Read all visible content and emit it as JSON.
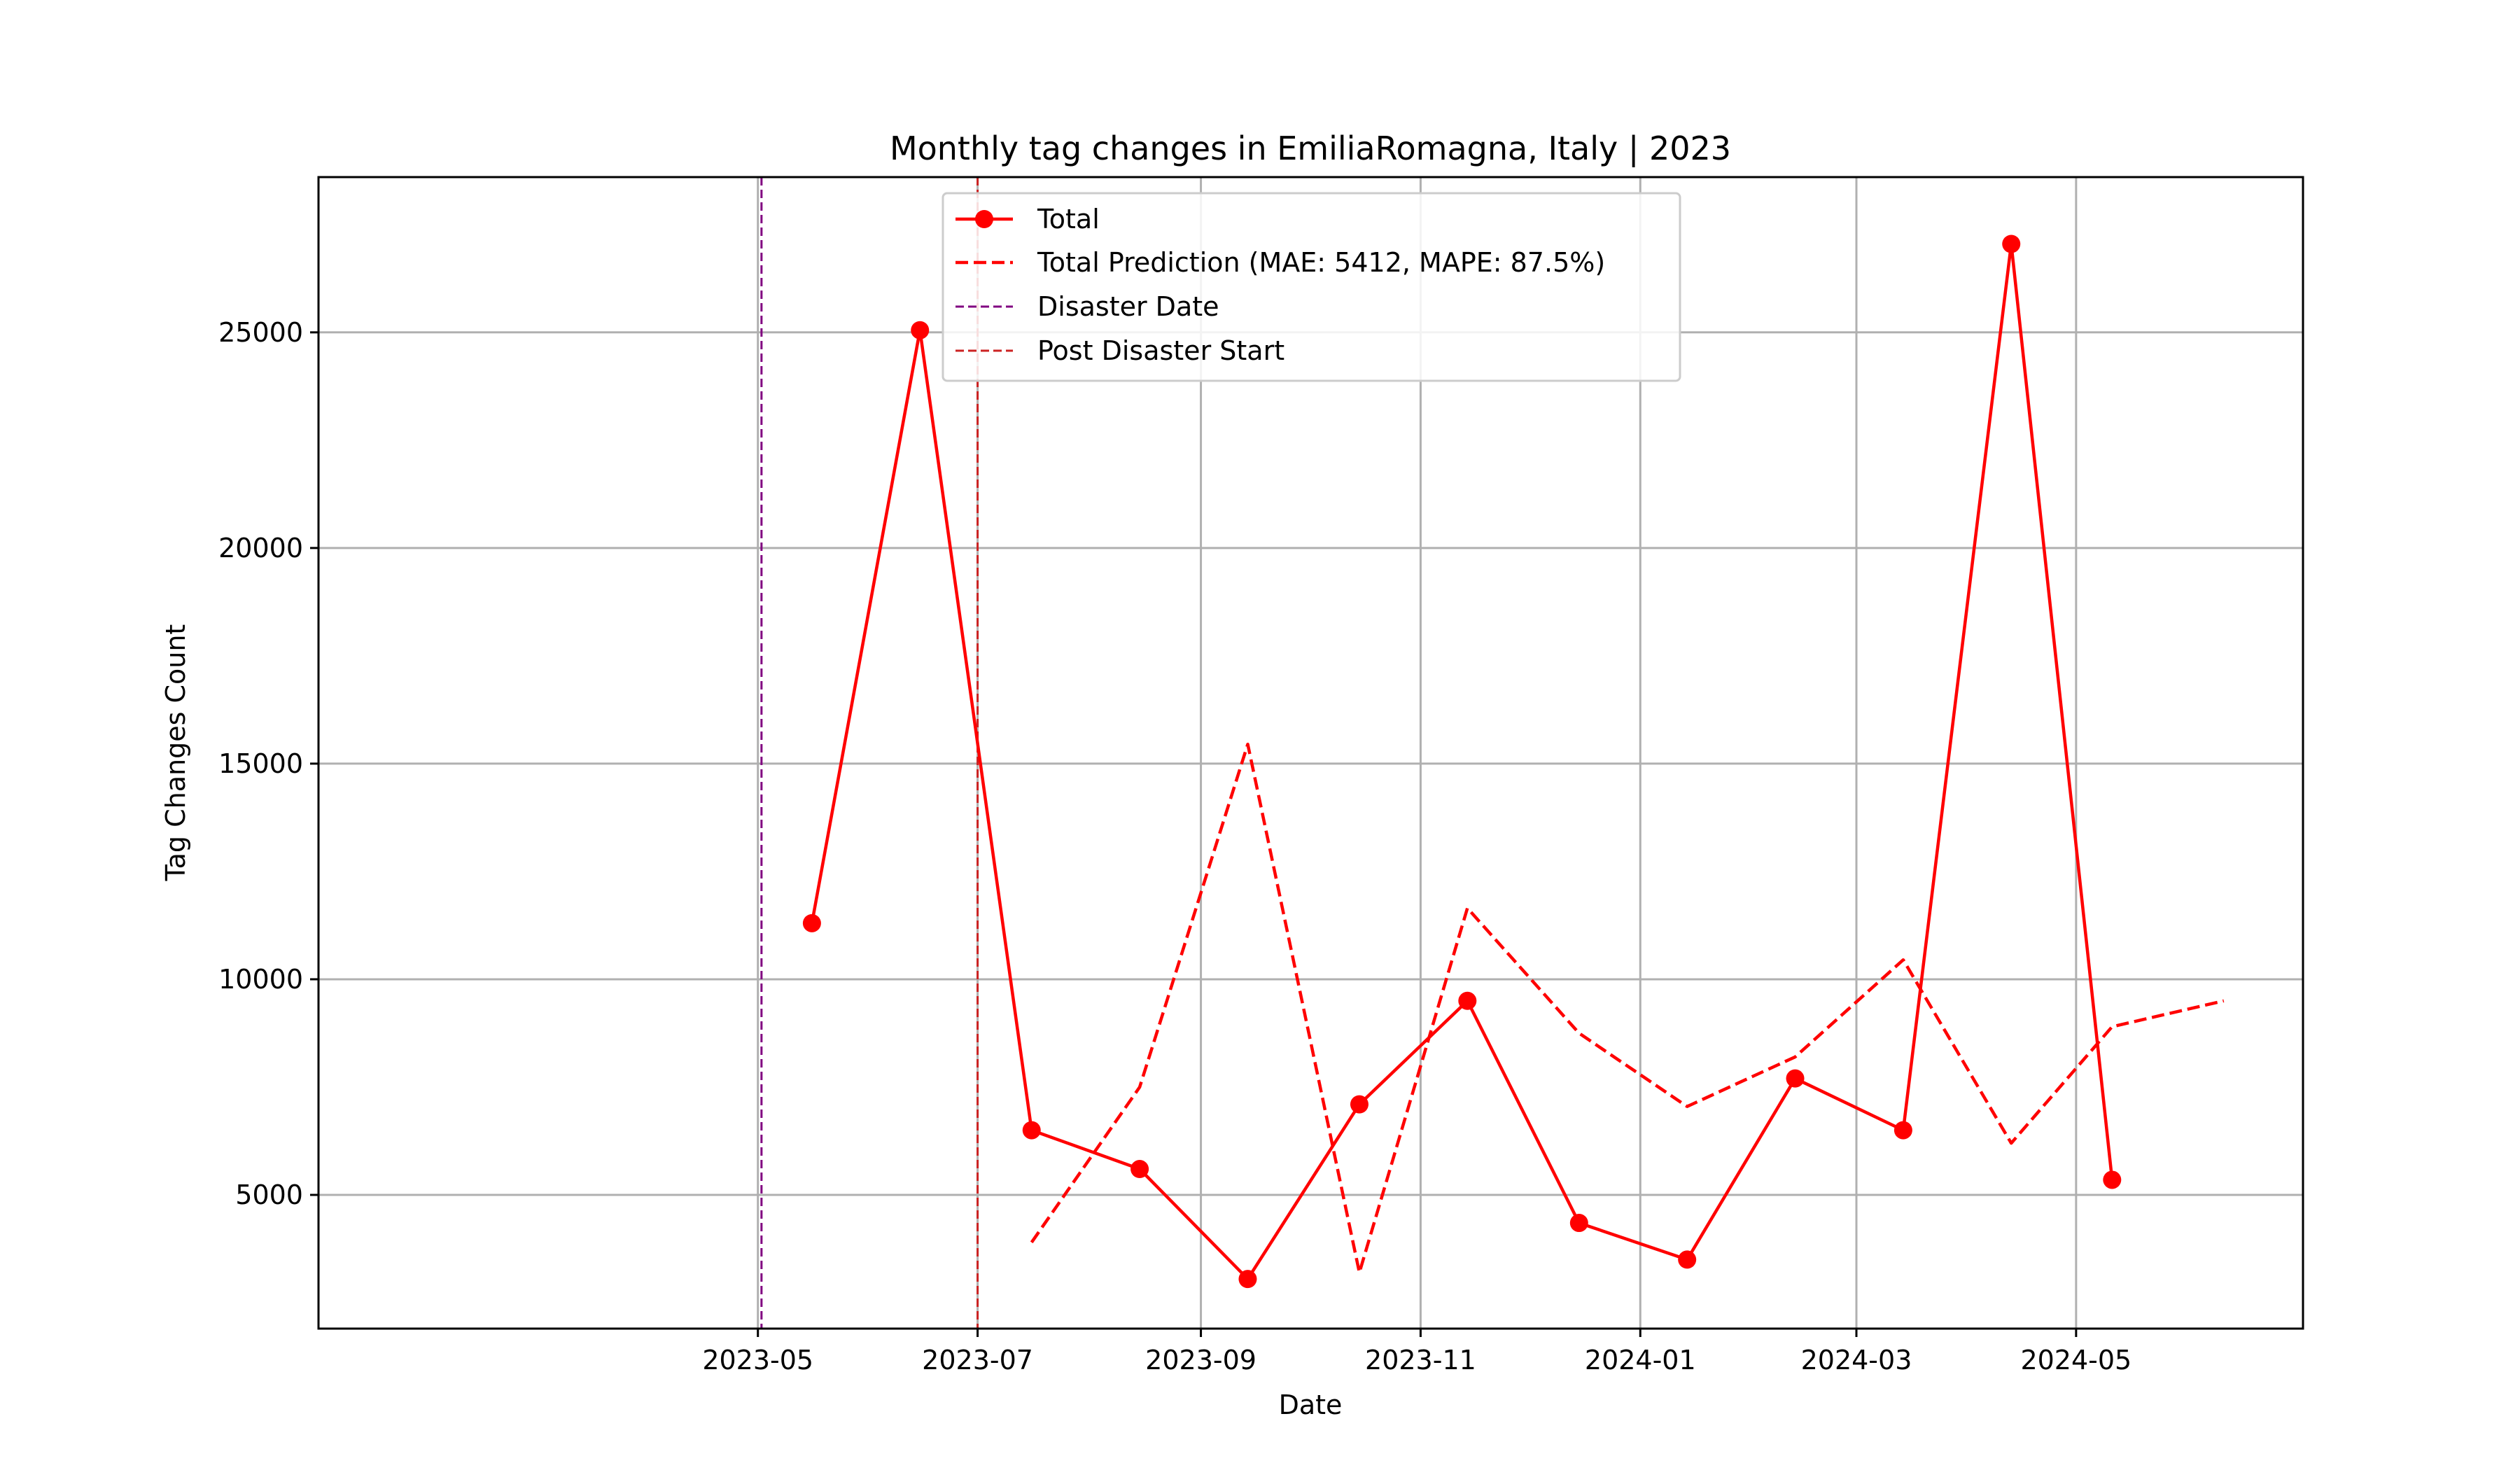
{
  "chart_data": {
    "type": "line",
    "title": "Monthly tag changes in EmiliaRomagna, Italy | 2023",
    "xlabel": "Date",
    "ylabel": "Tag Changes Count",
    "x_ticks": [
      "2023-05",
      "2023-07",
      "2023-09",
      "2023-11",
      "2024-01",
      "2024-03",
      "2024-05"
    ],
    "y_ticks": [
      5000,
      10000,
      15000,
      20000,
      25000
    ],
    "xlim": [
      "2022-12-30",
      "2024-07-03"
    ],
    "ylim": [
      1900,
      28600
    ],
    "grid": true,
    "legend_position": "top-center",
    "series": [
      {
        "name": "Total",
        "style": "solid-marker",
        "color": "#ff0000",
        "points": [
          [
            "2023-05-16",
            11300
          ],
          [
            "2023-06-15",
            25050
          ],
          [
            "2023-07-16",
            6500
          ],
          [
            "2023-08-15",
            5600
          ],
          [
            "2023-09-14",
            3050
          ],
          [
            "2023-10-15",
            7100
          ],
          [
            "2023-11-14",
            9500
          ],
          [
            "2023-12-15",
            4350
          ],
          [
            "2024-01-14",
            3500
          ],
          [
            "2024-02-13",
            7700
          ],
          [
            "2024-03-14",
            6500
          ],
          [
            "2024-04-13",
            27050
          ],
          [
            "2024-05-11",
            5350
          ]
        ]
      },
      {
        "name": "Total Prediction (MAE: 5412, MAPE: 87.5%)",
        "style": "dashed",
        "color": "#ff0000",
        "points": [
          [
            "2023-07-16",
            3900
          ],
          [
            "2023-08-15",
            7500
          ],
          [
            "2023-09-14",
            15450
          ],
          [
            "2023-10-15",
            3200
          ],
          [
            "2023-11-14",
            11650
          ],
          [
            "2023-12-15",
            8750
          ],
          [
            "2024-01-14",
            7050
          ],
          [
            "2024-02-13",
            8200
          ],
          [
            "2024-03-14",
            10450
          ],
          [
            "2024-04-13",
            6200
          ],
          [
            "2024-05-11",
            8900
          ],
          [
            "2024-06-11",
            9500
          ]
        ]
      }
    ],
    "vlines": [
      {
        "name": "Disaster Date",
        "date": "2023-05-02",
        "color": "#800080"
      },
      {
        "name": "Post Disaster Start",
        "date": "2023-07-01",
        "color": "#cc2222"
      }
    ]
  }
}
